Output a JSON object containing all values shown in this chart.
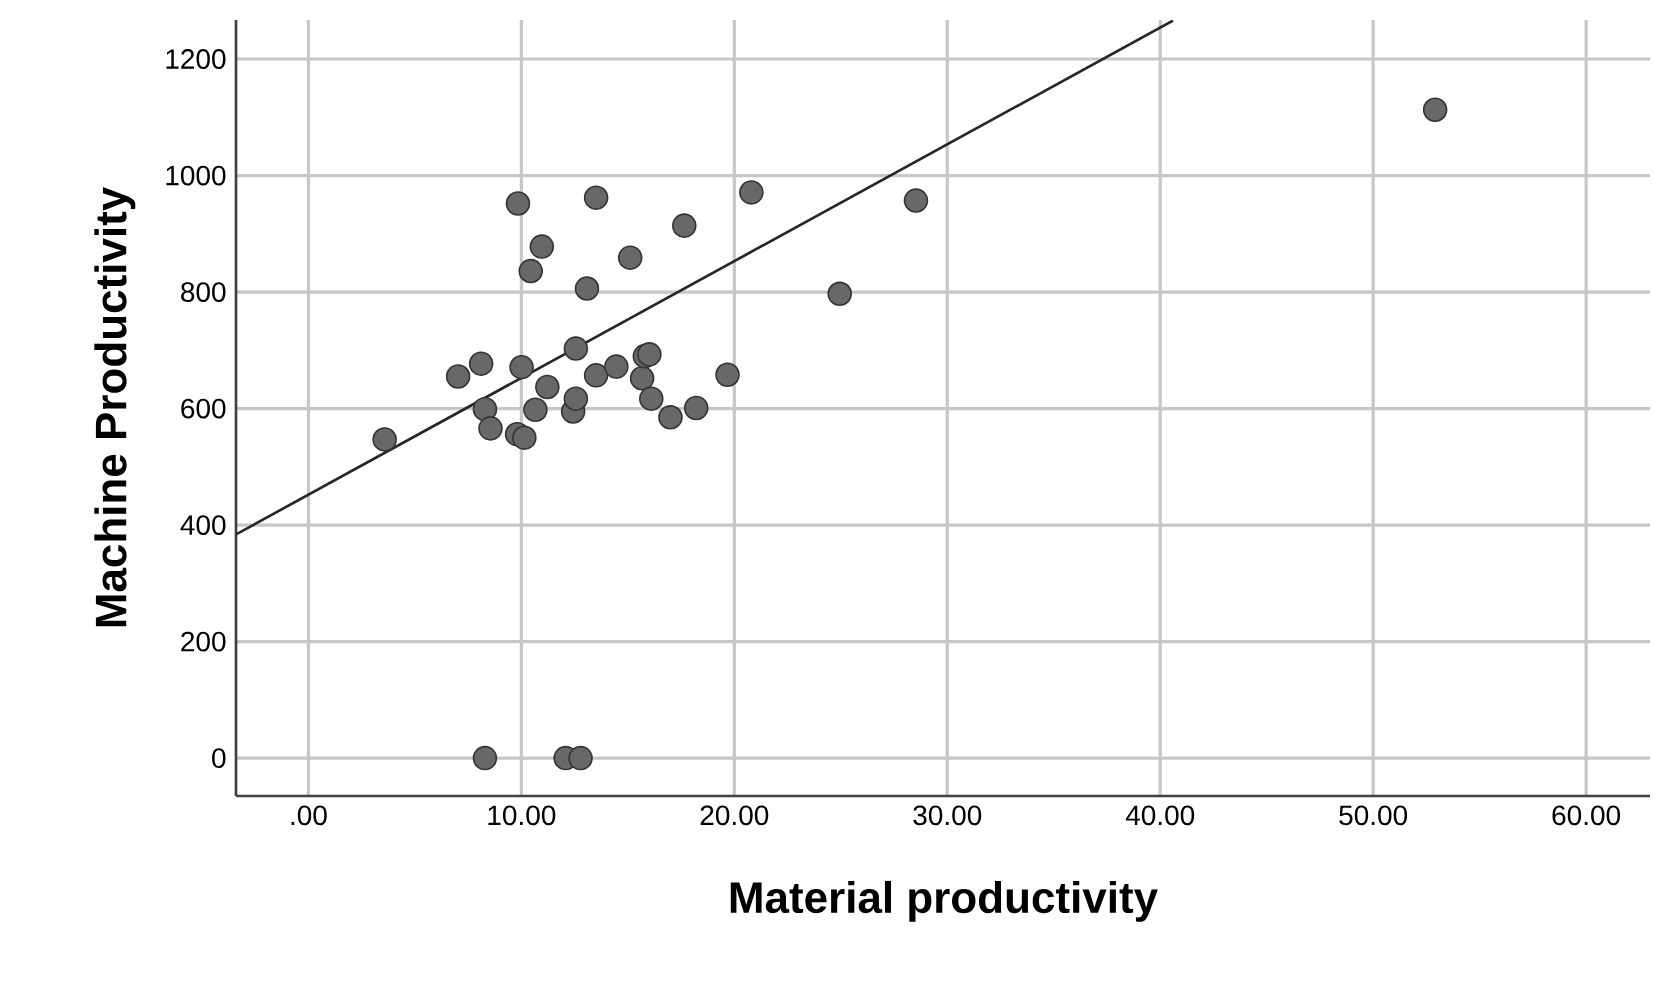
{
  "chart_data": {
    "type": "scatter",
    "xlabel": "Material productivity",
    "ylabel": "Machine Productivity",
    "xlim": [
      -3.4,
      63
    ],
    "ylim": [
      -65,
      1267
    ],
    "xticks": [
      {
        "value": 0,
        "label": ".00"
      },
      {
        "value": 10,
        "label": "10.00"
      },
      {
        "value": 20,
        "label": "20.00"
      },
      {
        "value": 30,
        "label": "30.00"
      },
      {
        "value": 40,
        "label": "40.00"
      },
      {
        "value": 50,
        "label": "50.00"
      },
      {
        "value": 60,
        "label": "60.00"
      }
    ],
    "yticks": [
      0,
      200,
      400,
      600,
      800,
      1000,
      1200
    ],
    "grid": true,
    "marker": "circle",
    "series": [
      {
        "color": "#686868",
        "x": [
          3.58,
          7.03,
          8.11,
          8.29,
          8.55,
          9.84,
          9.8,
          10.14,
          10.01,
          10.44,
          10.96,
          10.66,
          11.22,
          12.43,
          12.56,
          12.56,
          13.08,
          13.51,
          13.51,
          14.46,
          15.11,
          15.67,
          15.8,
          16.01,
          16.1,
          17.0,
          17.65,
          18.21,
          19.68,
          20.8,
          24.95,
          28.53,
          52.91,
          8.29,
          12.08,
          12.78
        ],
        "values": [
          547,
          655,
          677,
          599,
          566,
          952,
          556,
          550,
          671,
          836,
          878,
          598,
          637,
          595,
          617,
          703,
          806,
          962,
          657,
          672,
          859,
          652,
          690,
          693,
          617,
          585,
          914,
          601,
          658,
          971,
          797,
          957,
          1113,
          0,
          0,
          0
        ]
      },
      {
        "type": "line",
        "color": "#262626",
        "marker": "none",
        "x": [
          -3.4,
          40.6
        ],
        "values": [
          384,
          1266
        ]
      }
    ]
  }
}
